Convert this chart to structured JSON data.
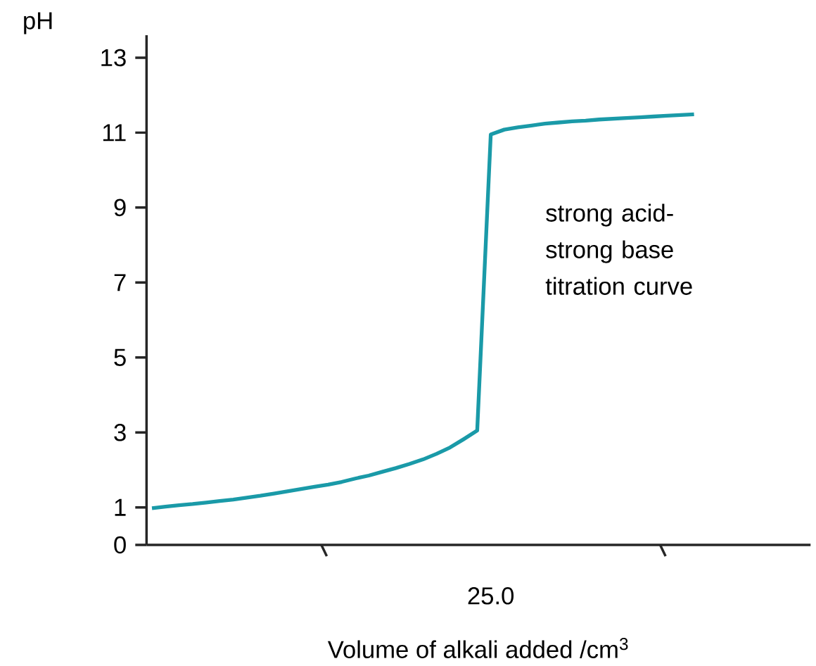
{
  "chart_data": {
    "type": "line",
    "xlabel": "Volume of alkali added /cm$^{3}$",
    "ylabel": "pH",
    "categories": [
      null,
      null,
      null,
      null,
      null,
      null,
      null,
      null,
      null,
      null,
      null,
      null,
      null,
      null,
      null,
      null,
      null,
      null,
      null,
      null,
      null,
      null,
      null,
      null,
      null,
      "25.0",
      null,
      null,
      null,
      null,
      null,
      null,
      null,
      null,
      null,
      null,
      null,
      null,
      null,
      null,
      null
    ],
    "series": [
      {
        "color": "#1a9aa8",
        "values": [
          0.98,
          1.02,
          1.06,
          1.09,
          1.13,
          1.17,
          1.21,
          1.26,
          1.31,
          1.37,
          1.43,
          1.49,
          1.55,
          1.61,
          1.68,
          1.77,
          1.85,
          1.95,
          2.05,
          2.16,
          2.28,
          2.43,
          2.6,
          2.82,
          3.05,
          10.95,
          11.08,
          11.14,
          11.19,
          11.24,
          11.27,
          11.3,
          11.32,
          11.35,
          11.37,
          11.39,
          11.41,
          11.43,
          11.45,
          11.47,
          11.49
        ]
      }
    ],
    "ylim": [
      0,
      13.6
    ],
    "yticks": [
      0,
      1,
      3,
      5,
      7,
      9,
      11,
      13
    ],
    "annotations": [
      "strong acid-strong base titration curve"
    ],
    "grid": false,
    "marker": "none",
    "line_style": "solid"
  }
}
